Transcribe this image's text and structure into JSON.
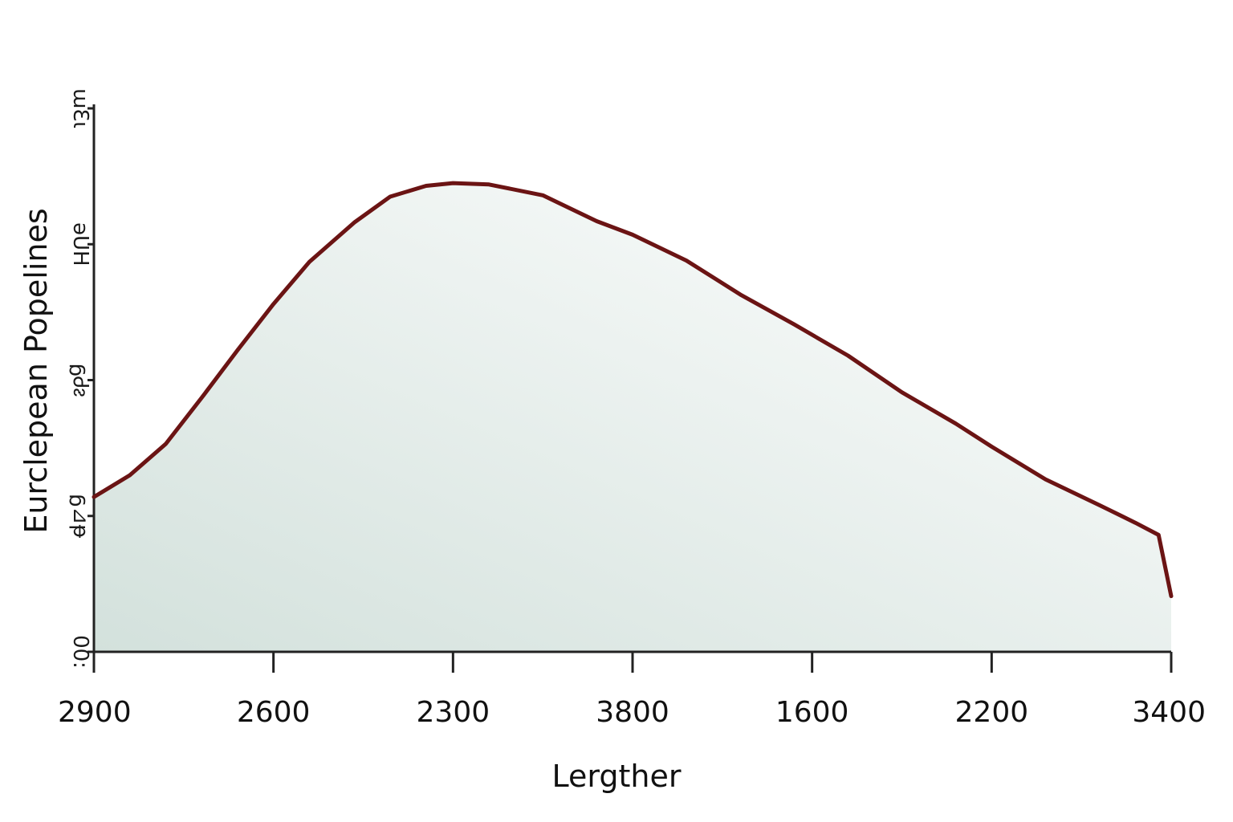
{
  "chart_data": {
    "type": "area",
    "title": "",
    "xlabel": "Lergther",
    "ylabel": "Eurclepean Popelines",
    "x_tick_labels": [
      "2900",
      "2600",
      "2300",
      "3800",
      "1600",
      "2200",
      "3400"
    ],
    "y_tick_labels": [
      "00:",
      "ᵷ⊿ᵽ",
      "ᵷᏧᴤ",
      "ǝUH",
      "ɯƐɩ"
    ],
    "x_range": [
      0,
      6
    ],
    "y_range": [
      0,
      4
    ],
    "grid": false,
    "legend": "none",
    "series": [
      {
        "x": [
          0,
          0.2,
          0.4,
          0.6,
          0.8,
          1.0,
          1.2,
          1.45,
          1.65,
          1.85,
          2.0,
          2.2,
          2.5,
          2.8,
          3.0,
          3.3,
          3.6,
          3.9,
          4.2,
          4.5,
          4.8,
          5.0,
          5.3,
          5.6,
          5.8,
          5.93,
          6.0
        ],
        "y": [
          1.14,
          1.3,
          1.53,
          1.87,
          2.22,
          2.56,
          2.87,
          3.16,
          3.35,
          3.43,
          3.45,
          3.44,
          3.36,
          3.17,
          3.07,
          2.88,
          2.63,
          2.41,
          2.18,
          1.91,
          1.68,
          1.51,
          1.27,
          1.08,
          0.95,
          0.86,
          0.41
        ]
      }
    ],
    "colors": {
      "line": "#6b1414",
      "fill_start": "#d3e1dc",
      "fill_end": "#ffffff",
      "axis": "#222222"
    }
  }
}
